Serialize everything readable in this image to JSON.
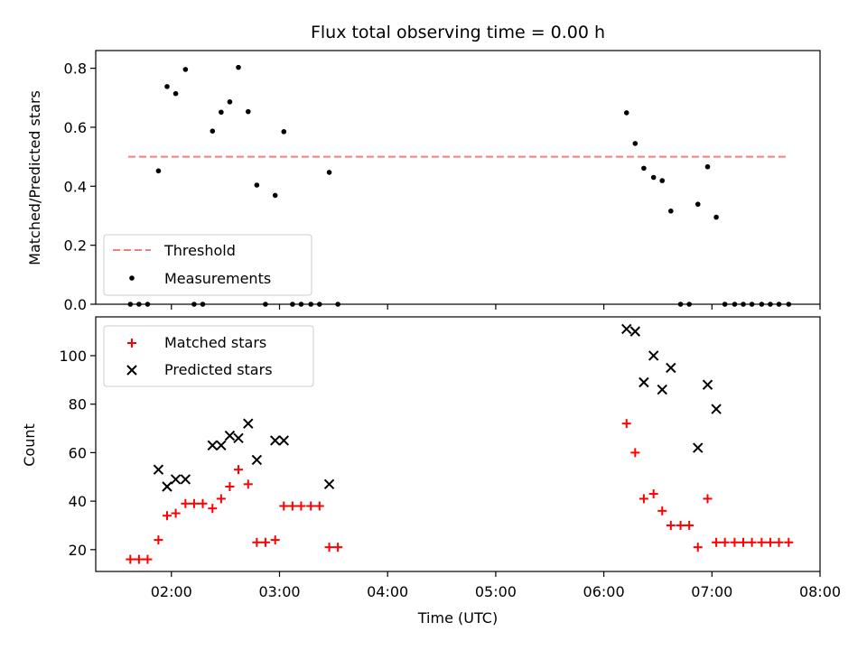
{
  "chart_data": [
    {
      "type": "scatter",
      "title": "Flux total observing time = 0.00 h",
      "ylabel": "Matched/Predicted stars",
      "xlabel": "",
      "xlim_hours": [
        1.3,
        8.0
      ],
      "ylim": [
        0,
        0.86
      ],
      "yticks": [
        0.0,
        0.2,
        0.4,
        0.6,
        0.8
      ],
      "ytick_labels": [
        "0.0",
        "0.2",
        "0.4",
        "0.6",
        "0.8"
      ],
      "legend_position": "lower-left",
      "series": [
        {
          "name": "Threshold",
          "kind": "dashed-line",
          "color": "#f08080",
          "x_hours": [
            1.6,
            7.7
          ],
          "y": [
            0.5,
            0.5
          ]
        },
        {
          "name": "Measurements",
          "kind": "dot",
          "color": "#000000",
          "x_hours": [
            1.62,
            1.7,
            1.78,
            1.88,
            1.96,
            2.04,
            2.13,
            2.21,
            2.29,
            2.38,
            2.46,
            2.54,
            2.62,
            2.71,
            2.79,
            2.87,
            2.96,
            3.04,
            3.12,
            3.2,
            3.29,
            3.37,
            3.46,
            3.54,
            6.21,
            6.29,
            6.37,
            6.46,
            6.54,
            6.62,
            6.71,
            6.79,
            6.87,
            6.96,
            7.04,
            7.12,
            7.21,
            7.29,
            7.37,
            7.46,
            7.54,
            7.62,
            7.71
          ],
          "y": [
            0,
            0,
            0,
            0.452,
            0.738,
            0.714,
            0.796,
            0,
            0,
            0.587,
            0.651,
            0.686,
            0.803,
            0.653,
            0.404,
            0,
            0.369,
            0.585,
            0,
            0,
            0,
            0,
            0.447,
            0,
            0.649,
            0.545,
            0.461,
            0.43,
            0.419,
            0.316,
            0,
            0,
            0.339,
            0.466,
            0.295,
            0,
            0,
            0,
            0,
            0,
            0,
            0,
            0
          ]
        }
      ]
    },
    {
      "type": "scatter",
      "title": "",
      "ylabel": "Count",
      "xlabel": "Time (UTC)",
      "xlim_hours": [
        1.3,
        8.0
      ],
      "xticks_hours": [
        2,
        3,
        4,
        5,
        6,
        7,
        8
      ],
      "xtick_labels": [
        "02:00",
        "03:00",
        "04:00",
        "05:00",
        "06:00",
        "07:00",
        "08:00"
      ],
      "ylim": [
        11,
        116
      ],
      "yticks": [
        20,
        40,
        60,
        80,
        100
      ],
      "ytick_labels": [
        "20",
        "40",
        "60",
        "80",
        "100"
      ],
      "legend_position": "upper-left",
      "series": [
        {
          "name": "Matched stars",
          "marker": "plus",
          "color": "#ff0000",
          "x_hours": [
            1.62,
            1.7,
            1.78,
            1.88,
            1.96,
            2.04,
            2.13,
            2.21,
            2.29,
            2.38,
            2.46,
            2.54,
            2.62,
            2.71,
            2.79,
            2.87,
            2.96,
            3.04,
            3.12,
            3.2,
            3.29,
            3.37,
            3.46,
            3.54,
            6.21,
            6.29,
            6.37,
            6.46,
            6.54,
            6.62,
            6.71,
            6.79,
            6.87,
            6.96,
            7.04,
            7.12,
            7.21,
            7.29,
            7.37,
            7.46,
            7.54,
            7.62,
            7.71
          ],
          "y": [
            16,
            16,
            16,
            24,
            34,
            35,
            39,
            39,
            39,
            37,
            41,
            46,
            53,
            47,
            23,
            23,
            24,
            38,
            38,
            38,
            38,
            38,
            21,
            21,
            72,
            60,
            41,
            43,
            36,
            30,
            30,
            30,
            21,
            41,
            23,
            23,
            23,
            23,
            23,
            23,
            23,
            23,
            23
          ]
        },
        {
          "name": "Predicted stars",
          "marker": "x",
          "color": "#000000",
          "x_hours": [
            1.88,
            1.96,
            2.04,
            2.13,
            2.38,
            2.46,
            2.54,
            2.62,
            2.71,
            2.79,
            2.96,
            3.04,
            3.46,
            6.21,
            6.29,
            6.37,
            6.46,
            6.54,
            6.62,
            6.87,
            6.96,
            7.04
          ],
          "y": [
            53,
            46,
            49,
            49,
            63,
            63,
            67,
            66,
            72,
            57,
            65,
            65,
            47,
            111,
            110,
            89,
            100,
            86,
            95,
            62,
            88,
            78
          ]
        }
      ]
    }
  ]
}
